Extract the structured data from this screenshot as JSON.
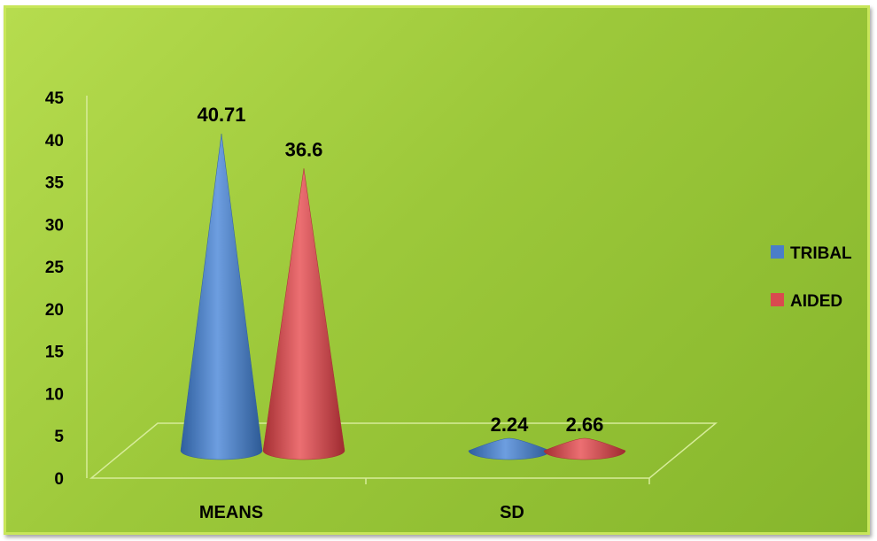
{
  "chart_data": {
    "type": "bar",
    "shape": "cone-3d",
    "categories": [
      "MEANS",
      "SD"
    ],
    "series": [
      {
        "name": "TRIBAL",
        "values": [
          40.71,
          2.24
        ],
        "labels": [
          "40.71",
          "2.24"
        ],
        "color": "#4a7ec8"
      },
      {
        "name": "AIDED",
        "values": [
          36.6,
          2.66
        ],
        "labels": [
          "36.6",
          "2.66"
        ],
        "color": "#d94a4f"
      }
    ],
    "ylim": [
      0,
      45
    ],
    "yticks": [
      "0",
      "5",
      "10",
      "15",
      "20",
      "25",
      "30",
      "35",
      "40",
      "45"
    ],
    "legend_position": "right",
    "background_color": "#9cc83a"
  }
}
